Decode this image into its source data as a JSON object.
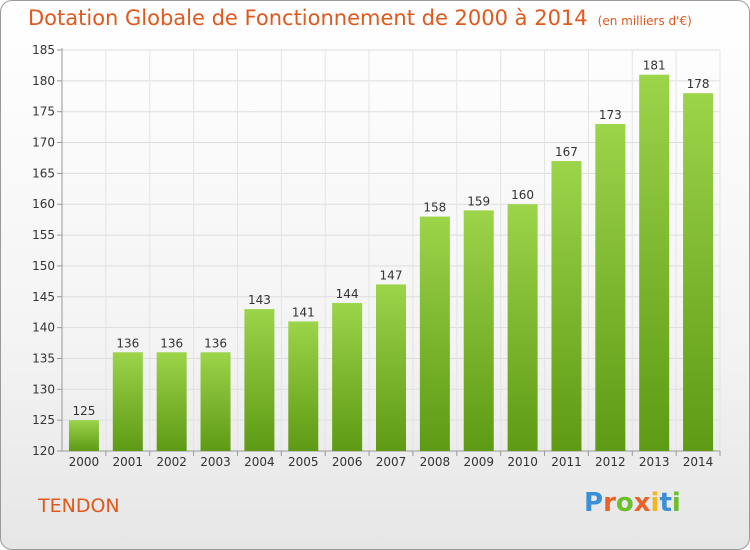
{
  "header": {
    "title": "Dotation Globale de Fonctionnement de 2000 à 2014",
    "subtitle": "(en milliers d'€)"
  },
  "footer": {
    "commune": "TENDON",
    "logo_text": "Proxiti"
  },
  "colors": {
    "title": "#e0581c",
    "bar_light": "#9cd44a",
    "bar_dark": "#5e9a14"
  },
  "chart_data": {
    "type": "bar",
    "categories": [
      "2000",
      "2001",
      "2002",
      "2003",
      "2004",
      "2005",
      "2006",
      "2007",
      "2008",
      "2009",
      "2010",
      "2011",
      "2012",
      "2013",
      "2014"
    ],
    "values": [
      125,
      136,
      136,
      136,
      143,
      141,
      144,
      147,
      158,
      159,
      160,
      167,
      173,
      181,
      178
    ],
    "title": "Dotation Globale de Fonctionnement de 2000 à 2014",
    "subtitle": "(en milliers d'€)",
    "ylim": [
      120,
      185
    ],
    "yticks": [
      120,
      125,
      130,
      135,
      140,
      145,
      150,
      155,
      160,
      165,
      170,
      175,
      180,
      185
    ],
    "grid": true
  }
}
